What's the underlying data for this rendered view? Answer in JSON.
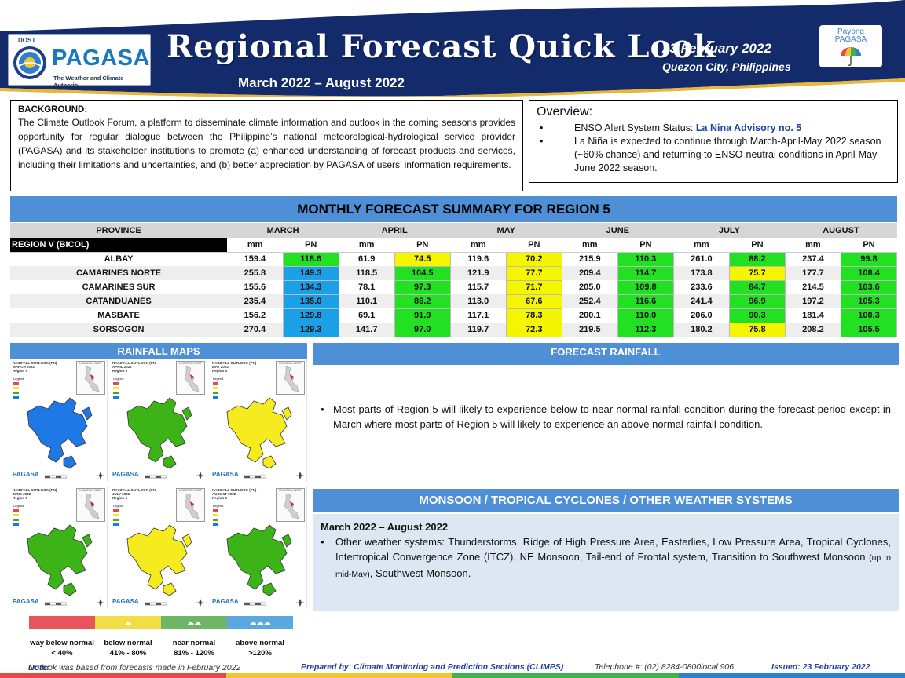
{
  "header": {
    "logo_top": "DOST",
    "logo_name": "PAGASA",
    "logo_tagline": "The Weather and Climate Authority",
    "title": "Regional Forecast Quick Look",
    "period": "March 2022 – August 2022",
    "date": "23 February 2022",
    "place": "Quezon City, Philippines",
    "payong_line1": "Payong",
    "payong_line2": "PAGASA"
  },
  "background": {
    "title": "BACKGROUND:",
    "text": "The Climate Outlook Forum, a platform to disseminate climate information and outlook in the coming seasons provides opportunity for regular dialogue between the Philippine’s national meteorological-hydrological service provider (PAGASA) and its stakeholder institutions to promote (a) enhanced understanding of forecast products and services, including their limitations and uncertainties, and (b) better appreciation by PAGASA of users’ information requirements."
  },
  "overview": {
    "title": "Overview:",
    "item1_label": "ENSO Alert System Status: ",
    "item1_value": "La Nina Advisory no. 5",
    "item2": "La Niña is expected to continue through March-April-May 2022 season (~60% chance) and returning to ENSO-neutral conditions in April-May-June 2022 season."
  },
  "table": {
    "title": "MONTHLY FORECAST SUMMARY FOR REGION 5",
    "province_header": "PROVINCE",
    "region_label": "REGION V (BICOL)",
    "months": [
      "MARCH",
      "APRIL",
      "MAY",
      "JUNE",
      "JULY",
      "AUGUST"
    ],
    "sub_mm": "mm",
    "sub_pn": "PN",
    "rows": [
      {
        "province": "ALBAY",
        "values": [
          [
            "159.4",
            "118.6"
          ],
          [
            "61.9",
            "74.5"
          ],
          [
            "119.6",
            "70.2"
          ],
          [
            "215.9",
            "110.3"
          ],
          [
            "261.0",
            "88.2"
          ],
          [
            "237.4",
            "99.8"
          ]
        ]
      },
      {
        "province": "CAMARINES NORTE",
        "values": [
          [
            "255.8",
            "149.3"
          ],
          [
            "118.5",
            "104.5"
          ],
          [
            "121.9",
            "77.7"
          ],
          [
            "209.4",
            "114.7"
          ],
          [
            "173.8",
            "75.7"
          ],
          [
            "177.7",
            "108.4"
          ]
        ]
      },
      {
        "province": "CAMARINES SUR",
        "values": [
          [
            "155.6",
            "134.3"
          ],
          [
            "78.1",
            "97.3"
          ],
          [
            "115.7",
            "71.7"
          ],
          [
            "205.0",
            "109.8"
          ],
          [
            "233.6",
            "84.7"
          ],
          [
            "214.5",
            "103.6"
          ]
        ]
      },
      {
        "province": "CATANDUANES",
        "values": [
          [
            "235.4",
            "135.0"
          ],
          [
            "110.1",
            "86.2"
          ],
          [
            "113.0",
            "67.6"
          ],
          [
            "252.4",
            "116.6"
          ],
          [
            "241.4",
            "96.9"
          ],
          [
            "197.2",
            "105.3"
          ]
        ]
      },
      {
        "province": "MASBATE",
        "values": [
          [
            "156.2",
            "129.8"
          ],
          [
            "69.1",
            "91.9"
          ],
          [
            "117.1",
            "78.3"
          ],
          [
            "200.1",
            "110.0"
          ],
          [
            "206.0",
            "90.3"
          ],
          [
            "181.4",
            "100.3"
          ]
        ]
      },
      {
        "province": "SORSOGON",
        "values": [
          [
            "270.4",
            "129.3"
          ],
          [
            "141.7",
            "97.0"
          ],
          [
            "119.7",
            "72.3"
          ],
          [
            "219.5",
            "112.3"
          ],
          [
            "180.2",
            "75.8"
          ],
          [
            "208.2",
            "105.5"
          ]
        ]
      }
    ]
  },
  "rainfall_maps": {
    "title": "RAINFALL MAPS",
    "maps": [
      {
        "title": "RAINFALL OUTLOOK (PN)",
        "month": "MARCH 2022",
        "region": "Region 5",
        "inset": "LOCATION INSET",
        "logo": "PAGASA",
        "fill": "#1e78e6"
      },
      {
        "title": "RAINFALL OUTLOOK (PN)",
        "month": "APRIL 2022",
        "region": "Region 5",
        "inset": "LOCATION INSET",
        "logo": "PAGASA",
        "fill": "#3cb417"
      },
      {
        "title": "RAINFALL OUTLOOK (PN)",
        "month": "MAY 2022",
        "region": "Region 5",
        "inset": "LOCATION INSET",
        "logo": "PAGASA",
        "fill": "#f5eb1e"
      },
      {
        "title": "RAINFALL OUTLOOK (PN)",
        "month": "JUNE 2022",
        "region": "Region 5",
        "inset": "LOCATION INSET",
        "logo": "PAGASA",
        "fill": "#3cb417"
      },
      {
        "title": "RAINFALL OUTLOOK (PN)",
        "month": "JULY 2022",
        "region": "Region 5",
        "inset": "LOCATION INSET",
        "logo": "PAGASA",
        "fill": "#f5eb1e"
      },
      {
        "title": "RAINFALL OUTLOOK (PN)",
        "month": "AUGUST 2022",
        "region": "Region 5",
        "inset": "LOCATION INSET",
        "logo": "PAGASA",
        "fill": "#3cb417"
      }
    ],
    "legend_heading": "Legend"
  },
  "legend": [
    {
      "label": "way below normal",
      "range": "< 40%",
      "color": "#e8535c"
    },
    {
      "label": "below normal",
      "range": "41% - 80%",
      "color": "#f2dd45"
    },
    {
      "label": "near normal",
      "range": "81% - 120%",
      "color": "#6eb665"
    },
    {
      "label": "above normal",
      "range": ">120%",
      "color": "#5aa8df"
    }
  ],
  "forecast_rainfall": {
    "title": "FORECAST RAINFALL",
    "text": "Most parts of Region 5 will likely to experience below to near normal rainfall condition during the forecast period except in March where most parts of Region 5 will likely to experience an above normal rainfall condition."
  },
  "monsoon": {
    "title": "MONSOON / TROPICAL CYCLONES / OTHER WEATHER SYSTEMS",
    "period": "March 2022 – August 2022",
    "text_main": "Other weather systems: Thunderstorms,  Ridge of High Pressure Area,  Easterlies, Low Pressure Area, Tropical Cyclones, Intertropical Convergence Zone (ITCZ), NE Monsoon, Tail-end of Frontal system, Transition to Southwest Monsoon ",
    "text_small": "(up to mid-May)",
    "text_tail": ", Southwest Monsoon."
  },
  "footer": {
    "note_label": "Note:",
    "note_text": " Outlook was based from forecasts made in February 2022",
    "prepared": "Prepared by: Climate Monitoring and Prediction Sections (CLIMPS)",
    "telephone": "Telephone #: (02) 8284-0800local 906",
    "issued": "Issued: 23 February 2022"
  },
  "colors": {
    "header_navy": "#132a6b",
    "section_blue": "#4f8fd6",
    "pn_above": "#1aa0e6",
    "pn_near": "#22e022",
    "pn_below": "#f5f500"
  }
}
